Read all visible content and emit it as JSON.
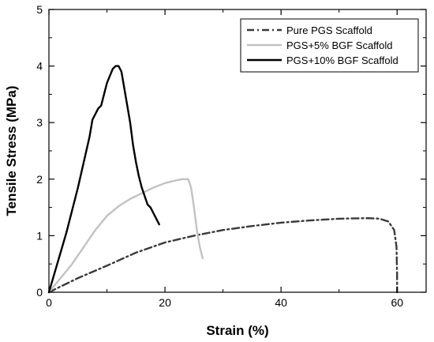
{
  "chart_data": {
    "type": "line",
    "title": "",
    "xlabel": "Strain (%)",
    "ylabel": "Tensile Stress (MPa)",
    "xlim": [
      0,
      65
    ],
    "ylim": [
      0,
      5
    ],
    "xticks": [
      0,
      20,
      40,
      60
    ],
    "yticks": [
      0,
      1,
      2,
      3,
      4,
      5
    ],
    "xtick_labels": [
      "0",
      "20",
      "40",
      "60"
    ],
    "ytick_labels": [
      "0",
      "1",
      "2",
      "3",
      "4",
      "5"
    ],
    "grid": false,
    "legend_position": "top-right",
    "series": [
      {
        "name": "Pure PGS Scaffold",
        "color": "#3a3a3a",
        "style": "dash-dot",
        "x": [
          0,
          2,
          5,
          10,
          15,
          20,
          25,
          30,
          35,
          40,
          45,
          50,
          55,
          57,
          58.5,
          59.5,
          59.9,
          60,
          60
        ],
        "y": [
          0,
          0.1,
          0.25,
          0.47,
          0.7,
          0.88,
          1.0,
          1.1,
          1.17,
          1.23,
          1.27,
          1.3,
          1.31,
          1.3,
          1.25,
          1.1,
          0.8,
          0.3,
          0
        ]
      },
      {
        "name": "PGS+5% BGF Scaffold",
        "color": "#c2c2c2",
        "style": "solid",
        "x": [
          0,
          2,
          4,
          6,
          8,
          10,
          12,
          14,
          16,
          18,
          20,
          22,
          23,
          24,
          24.5,
          25,
          25.5,
          26,
          26.5
        ],
        "y": [
          0,
          0.25,
          0.5,
          0.8,
          1.1,
          1.35,
          1.52,
          1.65,
          1.75,
          1.85,
          1.93,
          1.98,
          2.0,
          2.0,
          1.85,
          1.5,
          1.1,
          0.8,
          0.6
        ]
      },
      {
        "name": "PGS+10% BGF Scaffold",
        "color": "#000000",
        "style": "solid",
        "x": [
          0,
          1,
          2,
          3,
          4,
          5,
          6,
          7,
          7.5,
          8,
          8.5,
          9,
          10,
          11,
          11.5,
          12,
          12.5,
          13,
          13.5,
          14,
          14.5,
          15,
          15.5,
          16,
          16.5,
          17,
          17.5,
          18,
          18.5,
          19
        ],
        "y": [
          0,
          0.35,
          0.7,
          1.05,
          1.45,
          1.85,
          2.3,
          2.75,
          3.05,
          3.15,
          3.25,
          3.3,
          3.7,
          3.95,
          4.0,
          4.0,
          3.9,
          3.6,
          3.3,
          3.0,
          2.6,
          2.3,
          2.05,
          1.85,
          1.7,
          1.55,
          1.5,
          1.4,
          1.3,
          1.2
        ]
      }
    ]
  }
}
